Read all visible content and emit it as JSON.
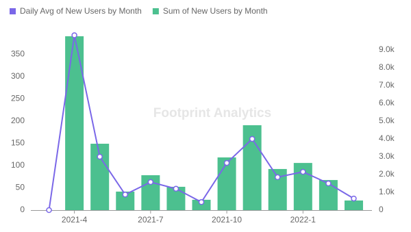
{
  "chart_data": {
    "type": "bar-line",
    "watermark": "Footprint Analytics",
    "categories": [
      null,
      "2021-4",
      null,
      null,
      "2021-7",
      null,
      null,
      "2021-10",
      null,
      null,
      "2022-1",
      null,
      null
    ],
    "series": [
      {
        "name": "Daily Avg of New Users by Month",
        "type": "line",
        "color": "#7a67e8",
        "axis": "y",
        "values": [
          0,
          393,
          120,
          35,
          63,
          48,
          18,
          106,
          160,
          74,
          86,
          60,
          26
        ]
      },
      {
        "name": "Sum of New Users by Month",
        "type": "bar",
        "color": "#4cc08f",
        "axis": "y2",
        "values": [
          0,
          9770,
          3730,
          1040,
          1960,
          1310,
          580,
          2960,
          4770,
          2310,
          2650,
          1690,
          540
        ]
      }
    ],
    "ylim": [
      0,
      400
    ],
    "yticks": [
      0,
      50,
      100,
      150,
      200,
      250,
      300,
      350
    ],
    "y2lim": [
      0,
      10000
    ],
    "y2ticks": [
      0,
      {
        "value": 1000,
        "label": "1.0k"
      },
      {
        "value": 2000,
        "label": "2.0k"
      },
      {
        "value": 3000,
        "label": "3.0k"
      },
      {
        "value": 4000,
        "label": "4.0k"
      },
      {
        "value": 5000,
        "label": "5.0k"
      },
      {
        "value": 6000,
        "label": "6.0k"
      },
      {
        "value": 7000,
        "label": "7.0k"
      },
      {
        "value": 8000,
        "label": "8.0k"
      },
      {
        "value": 9000,
        "label": "9.0k"
      }
    ],
    "grid": false
  }
}
